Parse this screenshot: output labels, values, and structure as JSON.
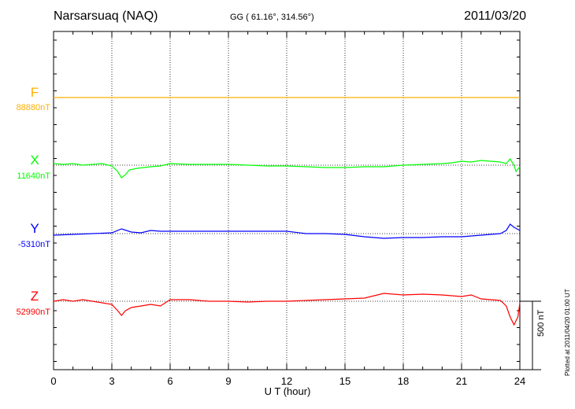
{
  "header": {
    "station": "Narsarsuaq (NAQ)",
    "coords": "GG ( 61.16°, 314.56°)",
    "date": "2011/03/20"
  },
  "footer": {
    "scale_label": "500 nT",
    "plotted_note": "Plotted at 2011/04/20 01:00 UT"
  },
  "chart_data": {
    "type": "line",
    "title": "Narsarsuaq (NAQ)",
    "subtitle": "GG ( 61.16°, 314.56°)",
    "date": "2011/03/20",
    "xlabel": "U T (hour)",
    "xlim": [
      0,
      24
    ],
    "xticks": [
      "0",
      "3",
      "6",
      "9",
      "12",
      "15",
      "18",
      "21",
      "24"
    ],
    "x_gridlines": [
      3,
      6,
      9,
      12,
      15,
      18,
      21
    ],
    "scale_bar_nT": 500,
    "colors": {
      "F": "#ffb000",
      "X": "#00ff00",
      "Y": "#0000ff",
      "Z": "#ff0000"
    },
    "series": [
      {
        "name": "F",
        "baseline_label": "88880nT",
        "color": "#ffb000",
        "x": [
          0,
          24
        ],
        "y": [
          0,
          0
        ]
      },
      {
        "name": "X",
        "baseline_label": "11640nT",
        "color": "#00ff00",
        "x": [
          0,
          0.5,
          1,
          1.5,
          2,
          2.5,
          3,
          3.3,
          3.5,
          3.7,
          3.9,
          4.3,
          5,
          5.5,
          6,
          7,
          8,
          9,
          10,
          11,
          12,
          13,
          14,
          15,
          16,
          17,
          18,
          19,
          20,
          20.5,
          21,
          21.5,
          22,
          22.5,
          23,
          23.3,
          23.5,
          23.7,
          23.8,
          24
        ],
        "y": [
          10,
          5,
          10,
          0,
          5,
          10,
          -5,
          -40,
          -80,
          -60,
          -30,
          -20,
          -10,
          -5,
          10,
          5,
          5,
          5,
          0,
          -5,
          -5,
          -10,
          -15,
          -15,
          -10,
          -10,
          0,
          5,
          10,
          15,
          25,
          20,
          30,
          25,
          20,
          10,
          40,
          0,
          -40,
          -10
        ]
      },
      {
        "name": "Y",
        "baseline_label": "-5310nT",
        "color": "#0000ff",
        "x": [
          0,
          1,
          2,
          3,
          3.5,
          4,
          4.5,
          5,
          5.5,
          6,
          7,
          8,
          9,
          10,
          11,
          12,
          13,
          14,
          15,
          16,
          17,
          18,
          19,
          20,
          21,
          22,
          22.5,
          23,
          23.3,
          23.5,
          23.7,
          24
        ],
        "y": [
          -10,
          -5,
          0,
          5,
          30,
          10,
          5,
          20,
          15,
          15,
          15,
          15,
          15,
          15,
          15,
          15,
          0,
          0,
          -5,
          -20,
          -30,
          -25,
          -25,
          -20,
          -20,
          -10,
          -5,
          0,
          20,
          60,
          40,
          20
        ]
      },
      {
        "name": "Z",
        "baseline_label": "52990nT",
        "color": "#ff0000",
        "x": [
          0,
          0.5,
          1,
          1.5,
          2,
          2.5,
          3,
          3.3,
          3.5,
          3.7,
          4,
          4.5,
          5,
          5.5,
          6,
          7,
          8,
          9,
          10,
          11,
          12,
          13,
          14,
          15,
          16,
          17,
          18,
          19,
          20,
          21,
          21.5,
          22,
          22.5,
          23,
          23.3,
          23.5,
          23.7,
          23.9,
          24
        ],
        "y": [
          0,
          10,
          0,
          10,
          0,
          -10,
          -20,
          -60,
          -90,
          -60,
          -40,
          -30,
          -20,
          -30,
          10,
          10,
          0,
          0,
          -5,
          0,
          0,
          5,
          10,
          15,
          20,
          50,
          40,
          45,
          40,
          30,
          40,
          15,
          10,
          5,
          -30,
          -100,
          -150,
          -100,
          -10
        ]
      }
    ]
  }
}
